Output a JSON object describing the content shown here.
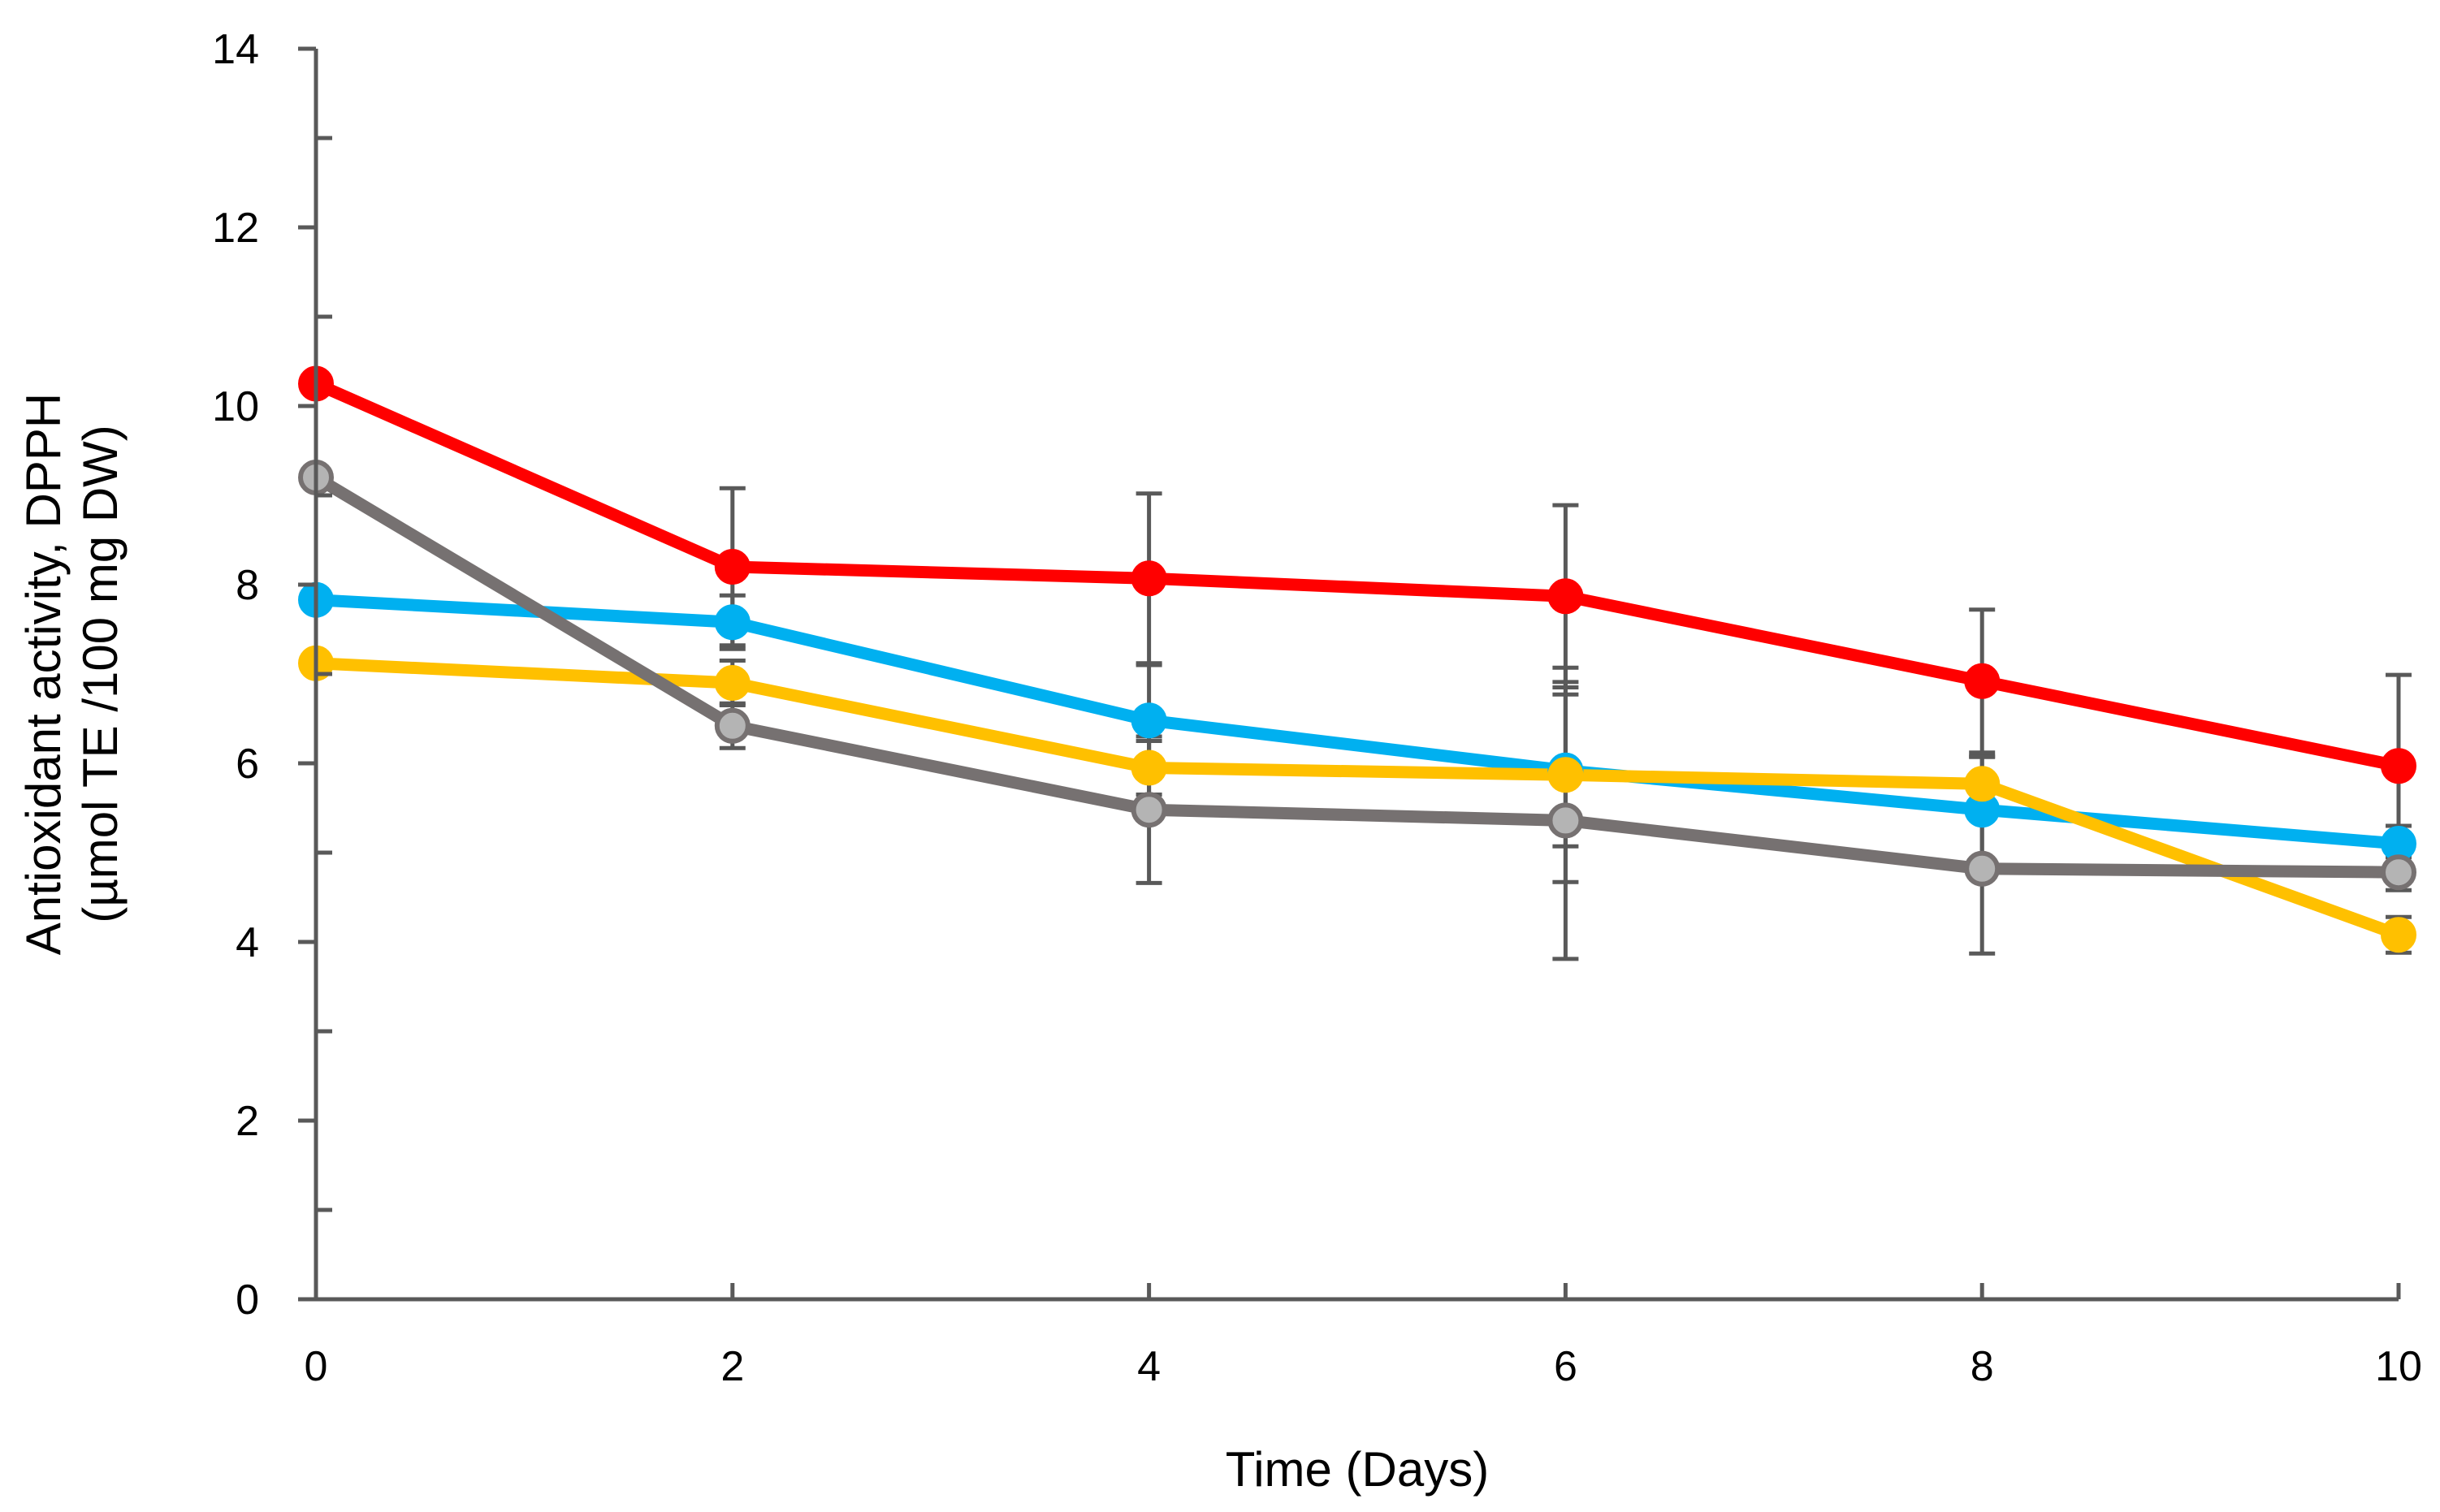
{
  "chart_data": {
    "type": "line",
    "title": "",
    "xlabel": "Time (Days)",
    "ylabel_line1": "Antioxidant activity, DPPH",
    "ylabel_line2": "(µmol TE /100 mg DW)",
    "x": [
      0,
      2,
      4,
      6,
      8,
      10
    ],
    "xlim": [
      0,
      10
    ],
    "ylim": [
      0,
      14
    ],
    "x_ticks": [
      "0",
      "2",
      "4",
      "6",
      "8",
      "10"
    ],
    "y_ticks": [
      "0",
      "2",
      "4",
      "6",
      "8",
      "10",
      "12",
      "14"
    ],
    "grid": false,
    "legend": "none",
    "series": [
      {
        "name": "red",
        "color": "#ff0000",
        "marker_fill": "#ff0000",
        "values": [
          10.25,
          8.2,
          8.07,
          7.87,
          6.92,
          5.97
        ],
        "error": [
          0,
          0.88,
          0.95,
          1.02,
          0.8,
          1.02
        ]
      },
      {
        "name": "blue",
        "color": "#00b0f0",
        "marker_fill": "#00b0f0",
        "values": [
          7.83,
          7.58,
          6.48,
          5.92,
          5.48,
          5.1
        ],
        "error": [
          0,
          0.3,
          0.62,
          0.85,
          0.6,
          0.2
        ]
      },
      {
        "name": "yellow",
        "color": "#ffc000",
        "marker_fill": "#ffc000",
        "values": [
          7.12,
          6.9,
          5.95,
          5.87,
          5.77,
          4.08
        ],
        "error": [
          0,
          0.25,
          0.3,
          1.2,
          0.3,
          0.2
        ]
      },
      {
        "name": "grey",
        "color": "#767171",
        "marker_fill": "#b4b4b4",
        "values": [
          9.2,
          6.42,
          5.48,
          5.36,
          4.82,
          4.78
        ],
        "error": [
          0,
          0.25,
          0.82,
          1.55,
          0.95,
          0.2
        ]
      }
    ]
  }
}
